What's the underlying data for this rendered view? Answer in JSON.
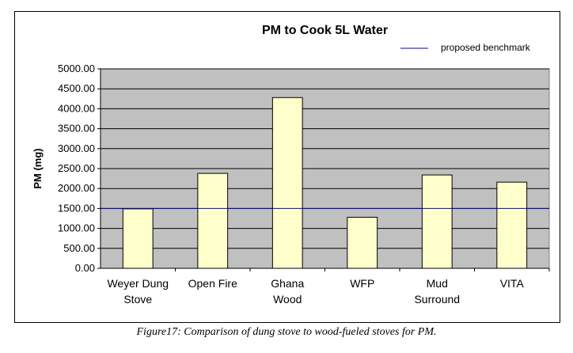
{
  "chart_data": {
    "type": "bar",
    "title": "PM to Cook 5L Water",
    "xlabel": "",
    "ylabel": "PM (mg)",
    "categories": [
      [
        "Weyer Dung",
        "Stove"
      ],
      [
        "Open Fire"
      ],
      [
        "Ghana",
        "Wood"
      ],
      [
        "WFP"
      ],
      [
        "Mud",
        "Surround"
      ],
      [
        "VITA"
      ]
    ],
    "values": [
      1490,
      2380,
      4280,
      1280,
      2340,
      2160
    ],
    "ylim": [
      0,
      5000
    ],
    "yticks": [
      "0.00",
      "500.00",
      "1000.00",
      "1500.00",
      "2000.00",
      "2500.00",
      "3000.00",
      "3500.00",
      "4000.00",
      "4500.00",
      "5000.00"
    ],
    "benchmark": {
      "label": "proposed benchmark",
      "value": 1500
    },
    "grid": true,
    "legend_position": "top-right",
    "colors": {
      "bar_fill": "#ffffcc",
      "plot_bg": "#c0c0c0",
      "benchmark": "#0000cc",
      "bar_stroke": "#000000"
    }
  },
  "caption": "Figure17: Comparison of dung stove to wood-fueled stoves for PM."
}
